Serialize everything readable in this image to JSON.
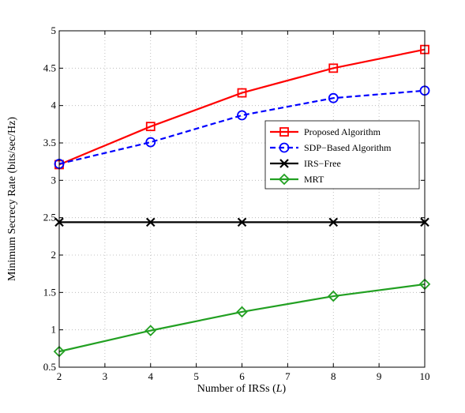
{
  "chart_data": {
    "type": "line",
    "title": "",
    "xlabel": "Number of IRSs (",
    "xlabel_var": "L",
    "xlabel_close": ")",
    "ylabel": "Minimum Secrecy Rate (bits/sec/Hz)",
    "xlim": [
      2,
      10
    ],
    "ylim": [
      0.5,
      5
    ],
    "xticks": [
      2,
      3,
      4,
      5,
      6,
      7,
      8,
      9,
      10
    ],
    "yticks": [
      0.5,
      1,
      1.5,
      2,
      2.5,
      3,
      3.5,
      4,
      4.5,
      5
    ],
    "xtick_labels": [
      "2",
      "3",
      "4",
      "5",
      "6",
      "7",
      "8",
      "9",
      "10"
    ],
    "ytick_labels": [
      "0.5",
      "1",
      "1.5",
      "2",
      "2.5",
      "3",
      "3.5",
      "4",
      "4.5",
      "5"
    ],
    "grid": true,
    "legend_position": "upper-right",
    "x": [
      2,
      4,
      6,
      8,
      10
    ],
    "series": [
      {
        "name": "Proposed Algorithm",
        "values": [
          3.21,
          3.72,
          4.17,
          4.5,
          4.75
        ],
        "color": "#ff0000",
        "marker": "square",
        "dash": "solid"
      },
      {
        "name": "SDP−Based Algorithm",
        "values": [
          3.22,
          3.51,
          3.87,
          4.1,
          4.2
        ],
        "color": "#0000ff",
        "marker": "circle",
        "dash": "dashed"
      },
      {
        "name": "IRS−Free",
        "values": [
          2.44,
          2.44,
          2.44,
          2.44,
          2.44
        ],
        "color": "#000000",
        "marker": "x",
        "dash": "solid"
      },
      {
        "name": "MRT",
        "values": [
          0.71,
          0.99,
          1.24,
          1.45,
          1.61
        ],
        "color": "#22a022",
        "marker": "diamond",
        "dash": "solid"
      }
    ]
  }
}
